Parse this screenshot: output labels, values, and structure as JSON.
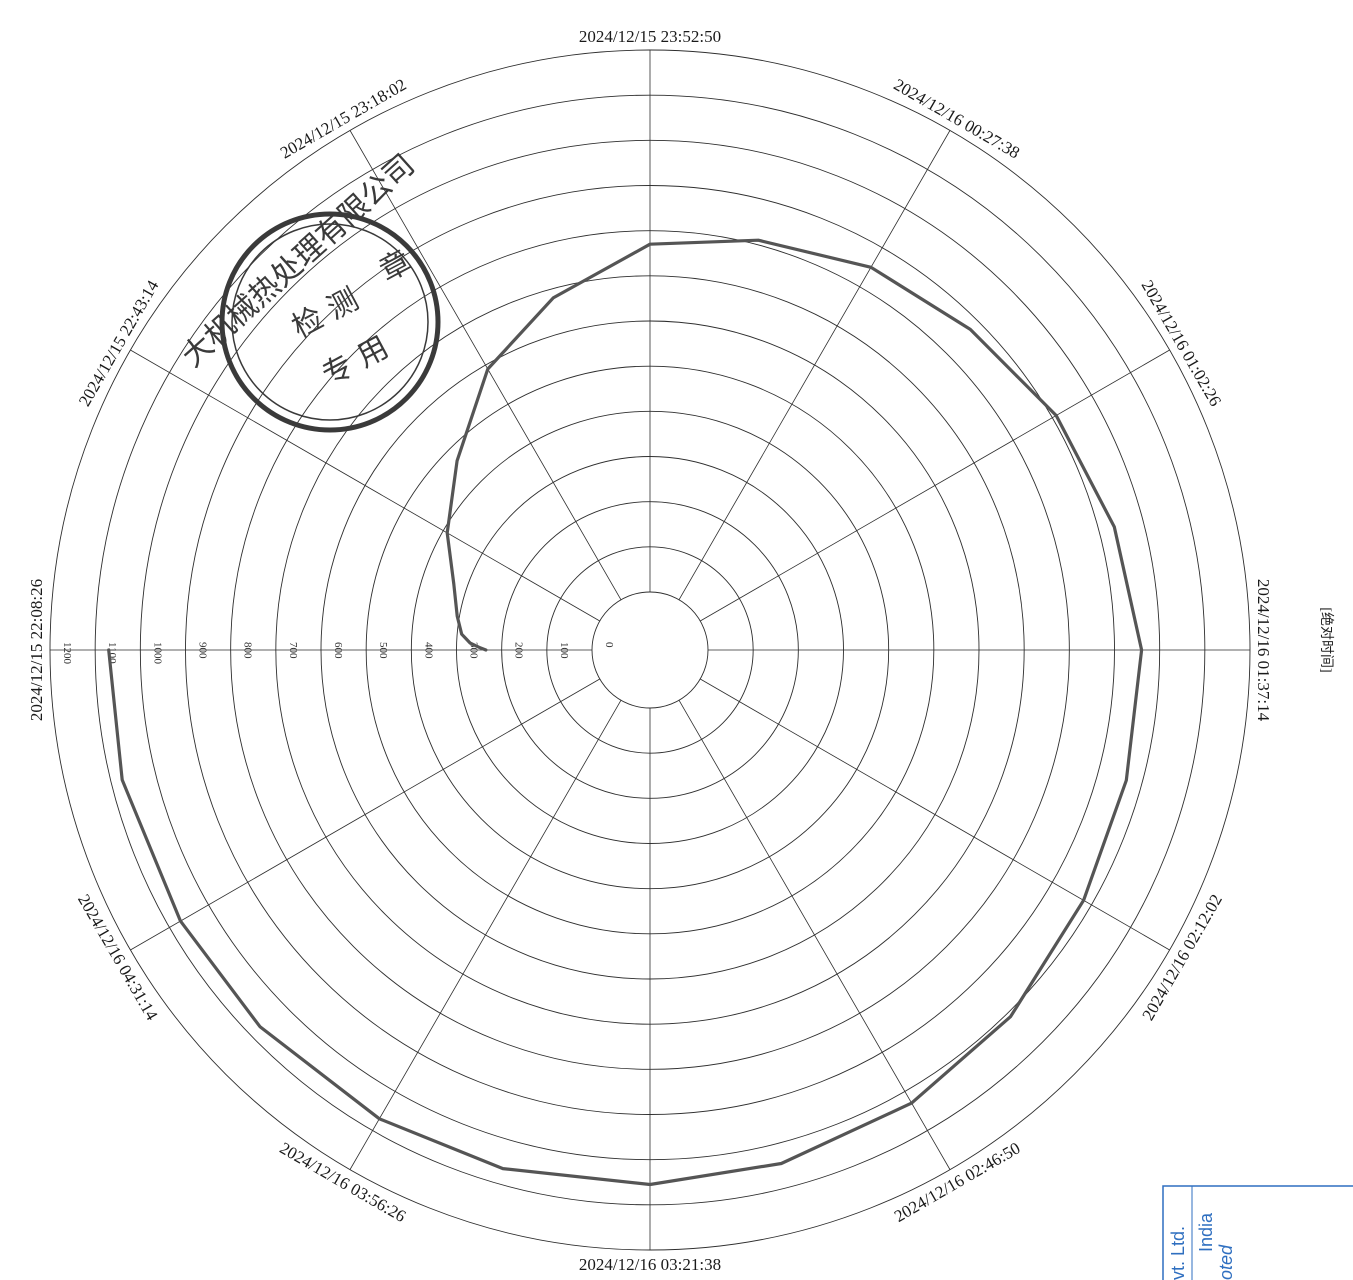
{
  "chart_data": {
    "type": "line",
    "coordinate_system": "polar",
    "angular_axis": {
      "direction": "clockwise",
      "start": "left",
      "tick_labels": [
        "2024/12/15 22:08:26",
        "2024/12/15 22:43:14",
        "2024/12/15 23:18:02",
        "2024/12/15 23:52:50",
        "2024/12/16 00:27:38",
        "2024/12/16 01:02:26",
        "2024/12/16 01:37:14",
        "2024/12/16 02:12:02",
        "2024/12/16 02:46:50",
        "2024/12/16 03:21:38",
        "2024/12/16 03:56:26",
        "2024/12/16 04:31:14"
      ]
    },
    "radial_axis": {
      "range": [
        0,
        1200
      ],
      "tick_values": [
        0,
        100,
        200,
        300,
        400,
        500,
        600,
        700,
        800,
        900,
        1000,
        1100,
        1200
      ],
      "tick_labels": [
        "0",
        "100",
        "200",
        "300",
        "400",
        "500",
        "600",
        "700",
        "800",
        "900",
        "1000",
        "1100",
        "1200"
      ]
    },
    "grid": true,
    "side_label": "[绝对时间]",
    "series": [
      {
        "color": "#555555",
        "points": [
          {
            "t": "2024/12/15 22:08:26",
            "r": 235
          },
          {
            "t": "2024/12/15 22:09:30",
            "r": 250
          },
          {
            "t": "2024/12/15 22:11:00",
            "r": 270
          },
          {
            "t": "2024/12/15 22:14:00",
            "r": 290
          },
          {
            "t": "2024/12/15 22:20:00",
            "r": 305
          },
          {
            "t": "2024/12/15 22:30:00",
            "r": 330
          },
          {
            "t": "2024/12/15 22:43:14",
            "r": 390
          },
          {
            "t": "2024/12/15 23:00:00",
            "r": 470
          },
          {
            "t": "2024/12/15 23:18:02",
            "r": 590
          },
          {
            "t": "2024/12/15 23:35:00",
            "r": 680
          },
          {
            "t": "2024/12/15 23:52:50",
            "r": 770
          },
          {
            "t": "2024/12/16 00:10:00",
            "r": 810
          },
          {
            "t": "2024/12/16 00:27:38",
            "r": 850
          },
          {
            "t": "2024/12/16 00:45:00",
            "r": 875
          },
          {
            "t": "2024/12/16 01:02:26",
            "r": 910
          },
          {
            "t": "2024/12/16 01:20:00",
            "r": 935
          },
          {
            "t": "2024/12/16 01:37:14",
            "r": 960
          },
          {
            "t": "2024/12/16 01:55:00",
            "r": 965
          },
          {
            "t": "2024/12/16 02:12:02",
            "r": 980
          },
          {
            "t": "2024/12/16 02:30:00",
            "r": 1010
          },
          {
            "t": "2024/12/16 02:46:50",
            "r": 1030
          },
          {
            "t": "2024/12/16 03:05:00",
            "r": 1045
          },
          {
            "t": "2024/12/16 03:21:38",
            "r": 1055
          },
          {
            "t": "2024/12/16 03:40:00",
            "r": 1065
          },
          {
            "t": "2024/12/16 03:56:26",
            "r": 1070
          },
          {
            "t": "2024/12/16 04:15:00",
            "r": 1072
          },
          {
            "t": "2024/12/16 04:31:14",
            "r": 1072
          },
          {
            "t": "2024/12/16 04:50:00",
            "r": 1075
          },
          {
            "t": "2024/12/16 05:06:02",
            "r": 1070
          }
        ]
      }
    ]
  },
  "stamp": {
    "outer_text": "大机械热处理有限公司",
    "center_line_1": "检 测",
    "center_line_2": "专 用",
    "center_line_3": "章"
  },
  "corner_box": {
    "line1": "vt. Ltd.",
    "line2": "India",
    "line3": "oted"
  },
  "colors": {
    "grid": "#2e2e2e",
    "curve": "#555555",
    "stamp": "#3a3a3a",
    "box": "#2f6fc0"
  }
}
